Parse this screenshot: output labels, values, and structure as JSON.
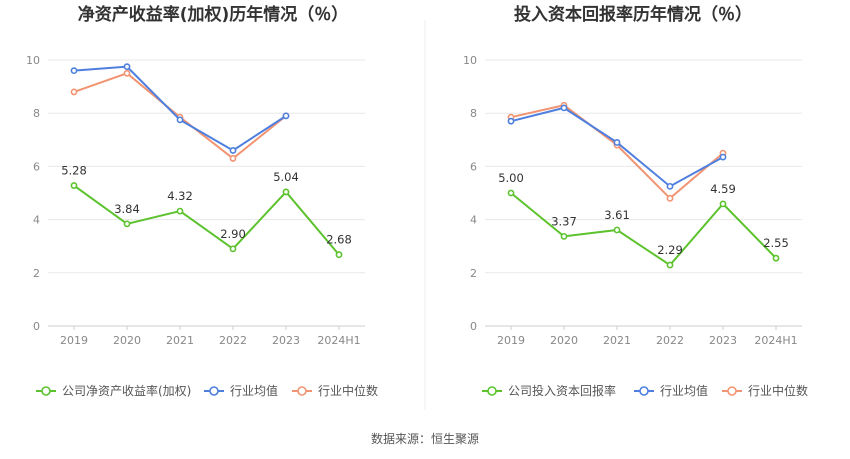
{
  "source": "数据来源：恒生聚源",
  "chart_data": [
    {
      "type": "line",
      "title": "净资产收益率(加权)历年情况（％）",
      "categories": [
        "2019",
        "2020",
        "2021",
        "2022",
        "2023",
        "2024H1"
      ],
      "yticks": [
        "0",
        "2",
        "4",
        "6",
        "8",
        "10"
      ],
      "ylim": [
        0,
        10.5
      ],
      "grid": true,
      "legend_position": "bottom",
      "series": [
        {
          "name": "公司净资产收益率(加权)",
          "color": "#5cc22d",
          "values": [
            5.28,
            3.84,
            4.32,
            2.9,
            5.04,
            2.68
          ],
          "labels": [
            "5.28",
            "3.84",
            "4.32",
            "2.90",
            "5.04",
            "2.68"
          ]
        },
        {
          "name": "行业均值",
          "color": "#4e7fde",
          "values": [
            9.6,
            9.75,
            7.75,
            6.6,
            7.9,
            null
          ]
        },
        {
          "name": "行业中位数",
          "color": "#f29472",
          "values": [
            8.8,
            9.5,
            7.85,
            6.3,
            7.9,
            null
          ]
        }
      ]
    },
    {
      "type": "line",
      "title": "投入资本回报率历年情况（％）",
      "categories": [
        "2019",
        "2020",
        "2021",
        "2022",
        "2023",
        "2024H1"
      ],
      "yticks": [
        "0",
        "2",
        "4",
        "6",
        "8",
        "10"
      ],
      "ylim": [
        0,
        10.5
      ],
      "grid": true,
      "legend_position": "bottom",
      "series": [
        {
          "name": "公司投入资本回报率",
          "color": "#5cc22d",
          "values": [
            5.0,
            3.37,
            3.61,
            2.29,
            4.59,
            2.55
          ],
          "labels": [
            "5.00",
            "3.37",
            "3.61",
            "2.29",
            "4.59",
            "2.55"
          ]
        },
        {
          "name": "行业均值",
          "color": "#4e7fde",
          "values": [
            7.7,
            8.2,
            6.9,
            5.25,
            6.35,
            null
          ]
        },
        {
          "name": "行业中位数",
          "color": "#f29472",
          "values": [
            7.85,
            8.3,
            6.8,
            4.8,
            6.5,
            null
          ]
        }
      ]
    }
  ]
}
